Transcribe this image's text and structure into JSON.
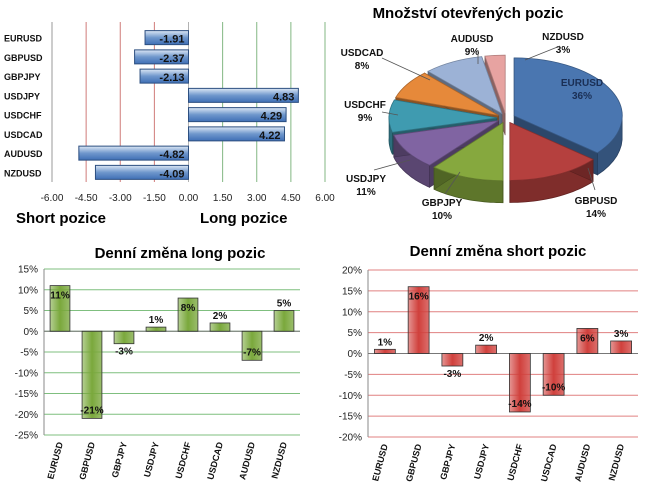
{
  "chart_data": [
    {
      "type": "bar",
      "orientation": "horizontal",
      "categories": [
        "EURUSD",
        "GBPUSD",
        "GBPJPY",
        "USDJPY",
        "USDCHF",
        "USDCAD",
        "AUDUSD",
        "NZDUSD"
      ],
      "values": [
        -1.91,
        -2.37,
        -2.13,
        4.83,
        4.29,
        4.22,
        -4.82,
        -4.09
      ],
      "value_labels": [
        "-1.91",
        "-2.37",
        "-2.13",
        "4.83",
        "4.29",
        "4.22",
        "-4.82",
        "-4.09"
      ],
      "xlim": [
        -6,
        6
      ],
      "xticks": [
        "-6.00",
        "-4.50",
        "-3.00",
        "-1.50",
        "0.00",
        "1.50",
        "3.00",
        "4.50",
        "6.00"
      ],
      "left_label": "Short pozice",
      "right_label": "Long pozice",
      "colors": {
        "bar": "#3f6fb5",
        "negative_line": "#c0504d",
        "positive_line": "#5aa05a"
      }
    },
    {
      "type": "pie",
      "title": "Množství otevřených pozic",
      "labels": [
        "EURUSD",
        "GBPUSD",
        "USDJPY",
        "GBPJPY",
        "USDCHF",
        "USDCAD",
        "AUDUSD",
        "NZDUSD"
      ],
      "values": [
        36,
        14,
        11,
        10,
        9,
        8,
        9,
        3
      ],
      "value_labels": [
        "36%",
        "14%",
        "11%",
        "10%",
        "9%",
        "8%",
        "9%",
        "3%"
      ],
      "colors": [
        "#4a76b0",
        "#b5403e",
        "#86a83e",
        "#8064a2",
        "#3f9bb0",
        "#e6893a",
        "#9cb2d6",
        "#e7a3a1"
      ]
    },
    {
      "type": "bar",
      "title": "Denní změna long pozic",
      "categories": [
        "EURUSD",
        "GBPUSD",
        "GBPJPY",
        "USDJPY",
        "USDCHF",
        "USDCAD",
        "AUDUSD",
        "NZDUSD"
      ],
      "values": [
        11,
        -21,
        -3,
        1,
        8,
        2,
        -7,
        5
      ],
      "value_labels": [
        "11%",
        "-21%",
        "-3%",
        "1%",
        "8%",
        "2%",
        "-7%",
        "5%"
      ],
      "ylim": [
        -25,
        15
      ],
      "yticks": [
        "15%",
        "10%",
        "5%",
        "0%",
        "-5%",
        "-10%",
        "-15%",
        "-20%",
        "-25%"
      ],
      "colors": {
        "bar": "#7aa83c",
        "grid": "#7fbf7f"
      }
    },
    {
      "type": "bar",
      "title": "Denní změna short pozic",
      "categories": [
        "EURUSD",
        "GBPUSD",
        "GBPJPY",
        "USDJPY",
        "USDCHF",
        "USDCAD",
        "AUDUSD",
        "NZDUSD"
      ],
      "values": [
        1,
        16,
        -3,
        2,
        -14,
        -10,
        6,
        3
      ],
      "value_labels": [
        "1%",
        "16%",
        "-3%",
        "2%",
        "-14%",
        "-10%",
        "6%",
        "3%"
      ],
      "ylim": [
        -20,
        20
      ],
      "yticks": [
        "20%",
        "15%",
        "10%",
        "5%",
        "0%",
        "-5%",
        "-10%",
        "-15%",
        "-20%"
      ],
      "colors": {
        "bar": "#d0403c",
        "grid": "#e08080"
      }
    }
  ]
}
